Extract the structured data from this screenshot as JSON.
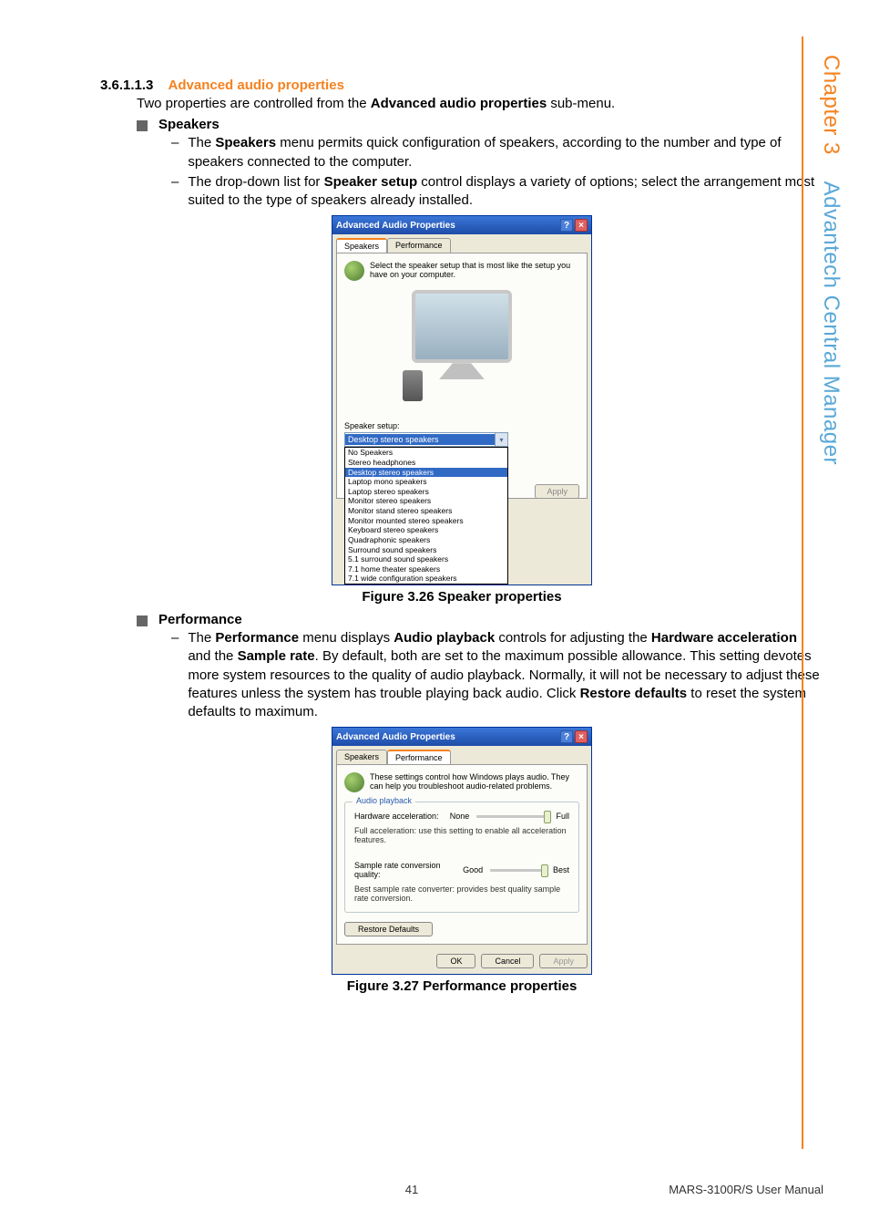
{
  "sidebar": {
    "chapter_label": "Chapter 3",
    "title": "Advantech Central Manager",
    "line_color": "#f58220",
    "text_color": "#5aa8d8"
  },
  "section": {
    "number": "3.6.1.1.3",
    "title": "Advanced audio properties",
    "title_color": "#f58220",
    "intro_before": "Two properties are controlled from the ",
    "intro_bold": "Advanced audio properties",
    "intro_after": " sub-menu."
  },
  "speakers_block": {
    "heading": "Speakers",
    "items": [
      {
        "pre": "The ",
        "b1": "Speakers",
        "post": " menu permits quick configuration of speakers, according to the number and type of speakers connected to the computer."
      },
      {
        "pre": "The drop-down list for ",
        "b1": "Speaker setup",
        "post": " control displays a variety of options; select the arrangement most suited to the type of speakers already installed."
      }
    ]
  },
  "dialog1": {
    "title": "Advanced Audio Properties",
    "tabs": [
      "Speakers",
      "Performance"
    ],
    "active_tab": 0,
    "info_text": "Select the speaker setup that is most like the setup you have on your computer.",
    "setup_label": "Speaker setup:",
    "selected": "Desktop stereo speakers",
    "options": [
      "No Speakers",
      "Stereo headphones",
      "Desktop stereo speakers",
      "Laptop mono speakers",
      "Laptop stereo speakers",
      "Monitor stereo speakers",
      "Monitor stand stereo speakers",
      "Monitor mounted stereo speakers",
      "Keyboard stereo speakers",
      "Quadraphonic speakers",
      "Surround sound speakers",
      "5.1 surround sound speakers",
      "7.1 home theater speakers",
      "7.1 wide configuration speakers"
    ],
    "highlighted_option_index": 2,
    "apply_label": "Apply",
    "selection_color": "#316ac5"
  },
  "figure1_caption": "Figure 3.26 Speaker properties",
  "performance_block": {
    "heading": "Performance",
    "item": {
      "pre": "The ",
      "b1": "Performance",
      "mid1": " menu displays ",
      "b2": "Audio playback",
      "mid2": " controls for adjusting the ",
      "b3": "Hardware acceleration",
      "mid3": " and the ",
      "b4": "Sample rate",
      "mid4": ". By default, both are set to the maximum possible allowance. This setting devotes more system resources to the quality of audio playback. Normally, it will not be necessary to adjust these features unless the system has trouble playing back audio. Click ",
      "b5": "Restore defaults",
      "post": " to reset the system defaults to maximum."
    }
  },
  "dialog2": {
    "title": "Advanced Audio Properties",
    "tabs": [
      "Speakers",
      "Performance"
    ],
    "active_tab": 1,
    "info_text": "These settings control how Windows plays audio. They can help you troubleshoot audio-related problems.",
    "group_title": "Audio playback",
    "hw_label": "Hardware acceleration:",
    "hw_left": "None",
    "hw_right": "Full",
    "hw_desc": "Full acceleration: use this setting to enable all acceleration features.",
    "sr_label": "Sample rate conversion quality:",
    "sr_left": "Good",
    "sr_right": "Best",
    "sr_desc": "Best sample rate converter:  provides best quality sample rate conversion.",
    "restore_label": "Restore Defaults",
    "ok_label": "OK",
    "cancel_label": "Cancel",
    "apply_label": "Apply"
  },
  "figure2_caption": "Figure 3.27 Performance properties",
  "footer": {
    "page_number": "41",
    "manual": "MARS-3100R/S User Manual"
  }
}
